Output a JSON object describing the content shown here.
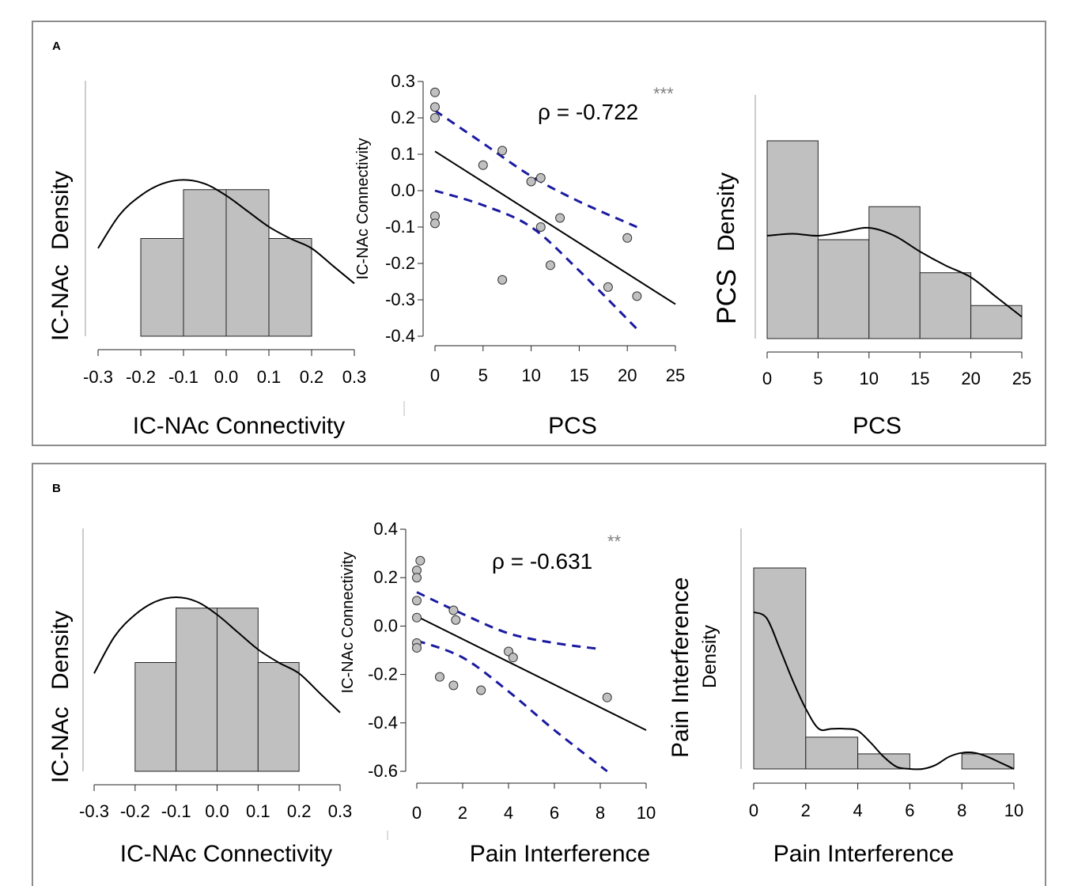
{
  "panels": [
    {
      "label": "A",
      "hist_left": {
        "ylabel_1": "IC-NAc",
        "ylabel_2": "Density",
        "xlabel": "IC-NAc Connectivity"
      },
      "scatter": {
        "ylabel": "IC-NAc Connectivity",
        "xlabel": "PCS",
        "rho_text": "ρ = -0.722",
        "stars": "***"
      },
      "hist_right": {
        "ylabel_1": "PCS",
        "ylabel_2": "Density",
        "xlabel": "PCS"
      }
    },
    {
      "label": "B",
      "hist_left": {
        "ylabel_1": "IC-NAc",
        "ylabel_2": "Density",
        "xlabel": "IC-NAc Connectivity"
      },
      "scatter": {
        "ylabel": "IC-NAc Connectivity",
        "xlabel": "Pain Interference",
        "rho_text": "ρ = -0.631",
        "stars": "**"
      },
      "hist_right": {
        "ylabel_1": "Pain Interference",
        "ylabel_2": "Density",
        "xlabel": "Pain Interference"
      }
    }
  ],
  "chart_data": [
    {
      "type": "bar",
      "panel": "A",
      "role": "histogram",
      "bin_edges": [
        -0.2,
        -0.1,
        0.0,
        0.1,
        0.2
      ],
      "relative_heights": [
        0.5,
        0.75,
        0.75,
        0.5
      ],
      "density_curve_x": [
        -0.3,
        -0.25,
        -0.2,
        -0.15,
        -0.1,
        -0.05,
        0.0,
        0.05,
        0.1,
        0.15,
        0.2,
        0.25,
        0.3
      ],
      "density_curve_y": [
        0.45,
        0.62,
        0.72,
        0.78,
        0.8,
        0.78,
        0.72,
        0.64,
        0.56,
        0.5,
        0.45,
        0.36,
        0.27
      ],
      "xticks": [
        -0.3,
        -0.2,
        -0.1,
        0.0,
        0.1,
        0.2,
        0.3
      ],
      "xlim": [
        -0.3,
        0.3
      ],
      "bar_color": "#c0c0c0"
    },
    {
      "type": "scatter",
      "panel": "A",
      "points": [
        [
          0,
          0.27
        ],
        [
          0,
          0.23
        ],
        [
          0,
          0.2
        ],
        [
          0,
          -0.07
        ],
        [
          0,
          -0.09
        ],
        [
          5,
          0.07
        ],
        [
          7,
          0.11
        ],
        [
          7,
          -0.245
        ],
        [
          10,
          0.025
        ],
        [
          11,
          0.035
        ],
        [
          11,
          -0.1
        ],
        [
          12,
          -0.205
        ],
        [
          13,
          -0.075
        ],
        [
          18,
          -0.265
        ],
        [
          20,
          -0.13
        ],
        [
          21,
          -0.29
        ]
      ],
      "fit_line": [
        [
          0,
          0.108
        ],
        [
          25,
          -0.312
        ]
      ],
      "ci_upper": [
        [
          0,
          0.22
        ],
        [
          5,
          0.13
        ],
        [
          10,
          0.04
        ],
        [
          15,
          -0.03
        ],
        [
          21,
          -0.1
        ]
      ],
      "ci_lower": [
        [
          0,
          0.0
        ],
        [
          5,
          -0.04
        ],
        [
          10,
          -0.1
        ],
        [
          15,
          -0.22
        ],
        [
          21,
          -0.38
        ]
      ],
      "xticks": [
        0,
        5,
        10,
        15,
        20,
        25
      ],
      "yticks": [
        -0.4,
        -0.3,
        -0.2,
        -0.1,
        0.0,
        0.1,
        0.2,
        0.3
      ],
      "xlim": [
        0,
        25
      ],
      "ylim": [
        -0.4,
        0.3
      ],
      "point_color": "#c0c0c0",
      "ci_color": "#1a1aa0",
      "stars_color": "#808080"
    },
    {
      "type": "bar",
      "panel": "A",
      "role": "histogram",
      "bin_edges": [
        0,
        5,
        10,
        15,
        20,
        25
      ],
      "relative_heights": [
        1.0,
        0.5,
        0.667,
        0.333,
        0.167
      ],
      "density_curve_x": [
        0,
        2.5,
        5,
        7.5,
        10,
        12.5,
        15,
        17.5,
        20,
        22.5,
        25
      ],
      "density_curve_y": [
        0.52,
        0.53,
        0.52,
        0.54,
        0.56,
        0.52,
        0.44,
        0.37,
        0.31,
        0.21,
        0.11
      ],
      "xticks": [
        0,
        5,
        10,
        15,
        20,
        25
      ],
      "xlim": [
        0,
        25
      ],
      "bar_color": "#c0c0c0"
    },
    {
      "type": "bar",
      "panel": "B",
      "role": "histogram",
      "bin_edges": [
        -0.2,
        -0.1,
        0.0,
        0.1,
        0.2
      ],
      "relative_heights": [
        0.5,
        0.75,
        0.75,
        0.5
      ],
      "density_curve_x": [
        -0.3,
        -0.25,
        -0.2,
        -0.15,
        -0.1,
        -0.05,
        0.0,
        0.05,
        0.1,
        0.15,
        0.2,
        0.25,
        0.3
      ],
      "density_curve_y": [
        0.45,
        0.62,
        0.72,
        0.78,
        0.8,
        0.78,
        0.72,
        0.64,
        0.56,
        0.5,
        0.45,
        0.36,
        0.27
      ],
      "xticks": [
        -0.3,
        -0.2,
        -0.1,
        0.0,
        0.1,
        0.2,
        0.3
      ],
      "xlim": [
        -0.3,
        0.3
      ],
      "bar_color": "#c0c0c0"
    },
    {
      "type": "scatter",
      "panel": "B",
      "points": [
        [
          0.15,
          0.27
        ],
        [
          0,
          0.23
        ],
        [
          0,
          0.2
        ],
        [
          0,
          0.105
        ],
        [
          0,
          0.035
        ],
        [
          0,
          -0.07
        ],
        [
          0,
          -0.09
        ],
        [
          1.6,
          0.065
        ],
        [
          1.7,
          0.025
        ],
        [
          1,
          -0.21
        ],
        [
          1.6,
          -0.245
        ],
        [
          2.8,
          -0.265
        ],
        [
          4,
          -0.105
        ],
        [
          4.2,
          -0.13
        ],
        [
          8.3,
          -0.295
        ]
      ],
      "fit_line": [
        [
          0,
          0.04
        ],
        [
          10,
          -0.43
        ]
      ],
      "ci_upper": [
        [
          0,
          0.14
        ],
        [
          2,
          0.05
        ],
        [
          4,
          -0.03
        ],
        [
          6,
          -0.07
        ],
        [
          8,
          -0.095
        ]
      ],
      "ci_lower": [
        [
          0,
          -0.06
        ],
        [
          2,
          -0.13
        ],
        [
          4,
          -0.27
        ],
        [
          6,
          -0.43
        ],
        [
          8.3,
          -0.6
        ]
      ],
      "xticks": [
        0,
        2,
        4,
        6,
        8,
        10
      ],
      "yticks": [
        -0.6,
        -0.4,
        -0.2,
        0.0,
        0.2,
        0.4
      ],
      "xlim": [
        0,
        10
      ],
      "ylim": [
        -0.6,
        0.4
      ],
      "point_color": "#c0c0c0",
      "ci_color": "#1a1aa0",
      "stars_color": "#808080"
    },
    {
      "type": "bar",
      "panel": "B",
      "role": "histogram",
      "bin_edges": [
        0,
        2,
        4,
        6,
        8,
        10
      ],
      "relative_heights": [
        1.0,
        0.158,
        0.075,
        0.0,
        0.075
      ],
      "density_curve_x": [
        0,
        0.5,
        1,
        1.5,
        2,
        2.5,
        3,
        3.5,
        4,
        4.5,
        5,
        5.5,
        6,
        6.5,
        7,
        7.5,
        8,
        8.5,
        9,
        9.5,
        10
      ],
      "density_curve_y": [
        0.78,
        0.75,
        0.6,
        0.44,
        0.3,
        0.2,
        0.2,
        0.2,
        0.19,
        0.13,
        0.06,
        0.01,
        0.0,
        0.0,
        0.02,
        0.06,
        0.08,
        0.08,
        0.06,
        0.03,
        0.0
      ],
      "xticks": [
        0,
        2,
        4,
        6,
        8,
        10
      ],
      "xlim": [
        0,
        10
      ],
      "bar_color": "#c0c0c0"
    }
  ]
}
